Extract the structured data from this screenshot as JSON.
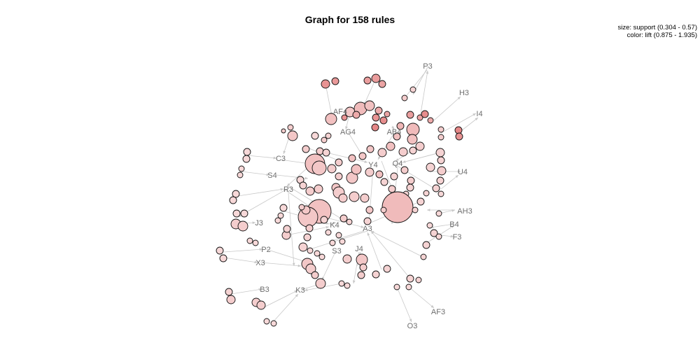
{
  "title": "Graph for 158 rules",
  "legend": {
    "size_line": "size: support (0.304 - 0.57)",
    "color_line": "color: lift (0.875 - 1.935)"
  },
  "colors": {
    "edge": "#c8c8c8",
    "label": "#6e6e6e",
    "lift_low": "#f9e4e4",
    "lift_high": "#e07070"
  },
  "items": [
    "P3",
    "H3",
    "I4",
    "AF4",
    "AG4",
    "AB4",
    "C3",
    "Y4",
    "Q4",
    "S4",
    "U4",
    "R3",
    "AH3",
    "J3",
    "K4",
    "A3",
    "B4",
    "F3",
    "P2",
    "S3",
    "J4",
    "X3",
    "B3",
    "K3",
    "AF3",
    "O3"
  ],
  "rules_count": 158
}
